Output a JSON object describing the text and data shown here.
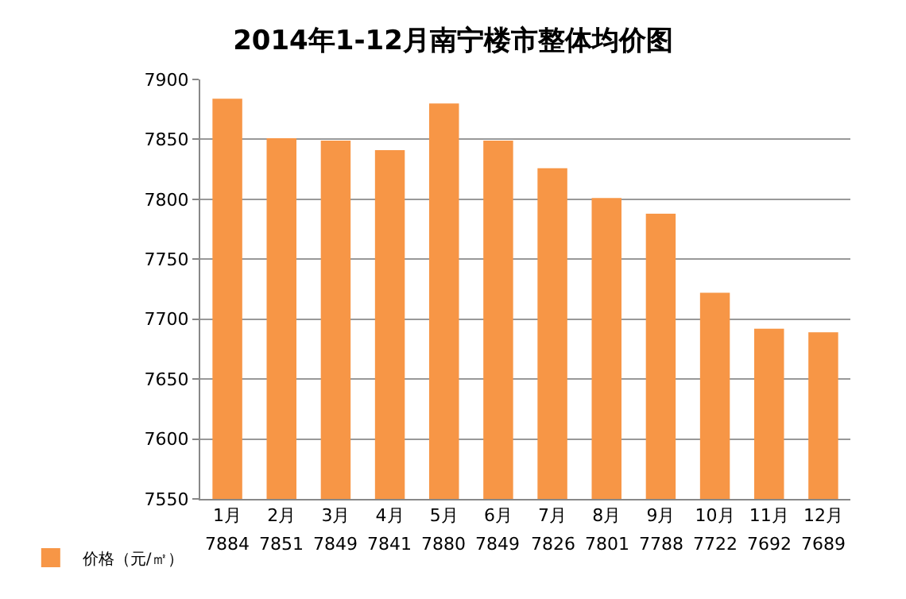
{
  "chart_data": {
    "type": "bar",
    "title": "2014年1-12月南宁楼市整体均价图",
    "categories": [
      "1月",
      "2月",
      "3月",
      "4月",
      "5月",
      "6月",
      "7月",
      "8月",
      "9月",
      "10月",
      "11月",
      "12月"
    ],
    "series": [
      {
        "name": "价格（元/㎡）",
        "color": "#f79646",
        "values": [
          7884,
          7851,
          7849,
          7841,
          7880,
          7849,
          7826,
          7801,
          7788,
          7722,
          7692,
          7689
        ]
      }
    ],
    "ylim": [
      7550,
      7900
    ],
    "yticks": [
      7550,
      7600,
      7650,
      7700,
      7750,
      7800,
      7850,
      7900
    ],
    "grid": "y",
    "legend": "bottom left",
    "data_labels": true
  }
}
